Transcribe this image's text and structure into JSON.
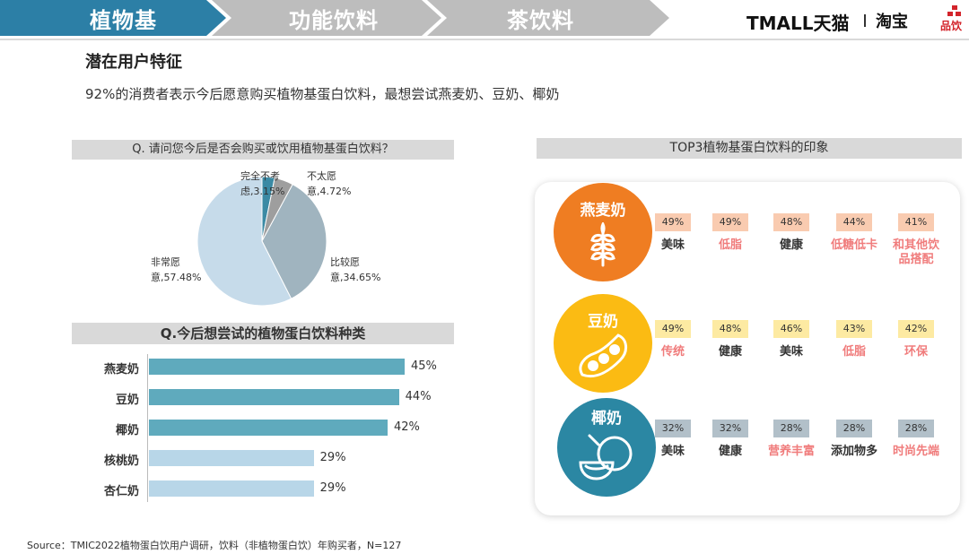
{
  "nav": {
    "tabs": [
      {
        "label": "植物基",
        "active": true
      },
      {
        "label": "功能饮料",
        "active": false
      },
      {
        "label": "茶饮料",
        "active": false
      }
    ],
    "brand_tmall": "TMALL天猫",
    "brand_taobao": "淘宝",
    "brand_partner": "品饮"
  },
  "page": {
    "title": "潜在用户特征",
    "subtitle": "92%的消费者表示今后愿意购买植物基蛋白饮料，最想尝试燕麦奶、豆奶、椰奶",
    "source": "Source：TMIC2022植物蛋白饮用户调研，饮料（非植物蛋白饮）年购买者，N=127"
  },
  "pie_section": {
    "header": "Q. 请问您今后是否会购买或饮用植物基蛋白饮料？",
    "labels": [
      {
        "line1": "完全不考",
        "line2": "虑,3.15%"
      },
      {
        "line1": "不太愿",
        "line2": "意,4.72%"
      },
      {
        "line1": "比较愿",
        "line2": "意,34.65%"
      },
      {
        "line1": "非常愿",
        "line2": "意,57.48%"
      }
    ]
  },
  "bar_section": {
    "header": "Q.今后想尝试的植物蛋白饮料种类"
  },
  "impression_section": {
    "header": "TOP3植物基蛋白饮料的印象",
    "groups": [
      {
        "name": "燕麦奶",
        "color": "#ef7d22",
        "icon": "wheat-icon",
        "items": [
          {
            "pct": "49%",
            "label": "美味",
            "highlight": false
          },
          {
            "pct": "49%",
            "label": "低脂",
            "highlight": true
          },
          {
            "pct": "48%",
            "label": "健康",
            "highlight": false
          },
          {
            "pct": "44%",
            "label": "低糖低卡",
            "highlight": true
          },
          {
            "pct": "41%",
            "label": "和其他饮品搭配",
            "highlight": true
          }
        ]
      },
      {
        "name": "豆奶",
        "color": "#fbbb13",
        "icon": "soybean-icon",
        "items": [
          {
            "pct": "49%",
            "label": "传统",
            "highlight": true
          },
          {
            "pct": "48%",
            "label": "健康",
            "highlight": false
          },
          {
            "pct": "46%",
            "label": "美味",
            "highlight": false
          },
          {
            "pct": "43%",
            "label": "低脂",
            "highlight": true
          },
          {
            "pct": "42%",
            "label": "环保",
            "highlight": true
          }
        ]
      },
      {
        "name": "椰奶",
        "color": "#2b87a3",
        "icon": "coconut-icon",
        "items": [
          {
            "pct": "32%",
            "label": "美味",
            "highlight": false
          },
          {
            "pct": "32%",
            "label": "健康",
            "highlight": false
          },
          {
            "pct": "28%",
            "label": "营养丰富",
            "highlight": true
          },
          {
            "pct": "28%",
            "label": "添加物多",
            "highlight": false
          },
          {
            "pct": "28%",
            "label": "时尚先端",
            "highlight": true
          }
        ]
      }
    ]
  },
  "colors": {
    "nav_active": "#2c7fa6",
    "nav_inactive": "#bdbdbd",
    "bar_dark": "#5faabd",
    "bar_light": "#b8d6e8",
    "highlight_text": "#f07c7c",
    "badge_orange": "#f9cbb0",
    "badge_yellow": "#fdeaa2",
    "badge_blue": "#b2c0c9"
  },
  "chart_data": [
    {
      "type": "pie",
      "title": "Q. 请问您今后是否会购买或饮用植物基蛋白饮料？",
      "categories": [
        "完全不考虑",
        "不太愿意",
        "比较愿意",
        "非常愿意"
      ],
      "values": [
        3.15,
        4.72,
        34.65,
        57.48
      ],
      "colors": [
        "#3b8aa4",
        "#9e9e9e",
        "#a0b4bf",
        "#c6dbea"
      ]
    },
    {
      "type": "bar",
      "title": "Q.今后想尝试的植物蛋白饮料种类",
      "orientation": "horizontal",
      "categories": [
        "燕麦奶",
        "豆奶",
        "椰奶",
        "核桃奶",
        "杏仁奶"
      ],
      "values": [
        45,
        44,
        42,
        29,
        29
      ],
      "value_labels": [
        "45%",
        "44%",
        "42%",
        "29%",
        "29%"
      ],
      "xlim": [
        0,
        50
      ]
    }
  ]
}
